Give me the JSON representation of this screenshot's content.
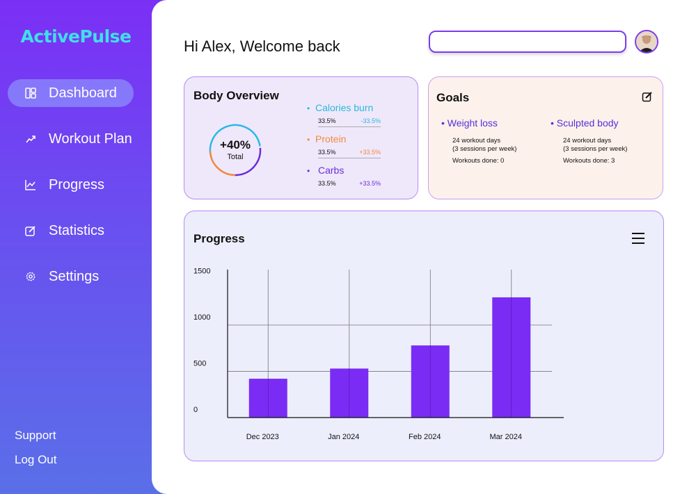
{
  "app": {
    "brand": "ActivePulse"
  },
  "sidebar": {
    "items": [
      {
        "label": "Dashboard",
        "icon": "dashboard-icon",
        "active": true
      },
      {
        "label": "Workout Plan",
        "icon": "trend-arrow-icon",
        "active": false
      },
      {
        "label": "Progress",
        "icon": "line-chart-icon",
        "active": false
      },
      {
        "label": "Statistics",
        "icon": "edit-square-icon",
        "active": false
      },
      {
        "label": "Settings",
        "icon": "gear-icon",
        "active": false
      }
    ],
    "support": "Support",
    "logout": "Log Out"
  },
  "header": {
    "greeting": "Hi Alex, Welcome back",
    "search_value": ""
  },
  "body_overview": {
    "title": "Body Overview",
    "ring_value": "+40%",
    "ring_label": "Total",
    "metrics": [
      {
        "label": "Calories burn",
        "value": "33.5%",
        "change": "-33.5%",
        "color": "#2bb8d8"
      },
      {
        "label": "Protein",
        "value": "33.5%",
        "change": "+33.5%",
        "color": "#f08a3a"
      },
      {
        "label": "Carbs",
        "value": "33.5%",
        "change": "+33.5%",
        "color": "#6a2ed8"
      }
    ]
  },
  "goals": {
    "title": "Goals",
    "items": [
      {
        "name": "Weight loss",
        "line1": "24 workout days",
        "line2": "(3 sessions per week)",
        "done": "Workouts done: 0"
      },
      {
        "name": "Sculpted body",
        "line1": "24 workout days",
        "line2": "(3 sessions per week)",
        "done": "Workouts done: 3"
      }
    ]
  },
  "progress": {
    "title": "Progress"
  },
  "chart_data": {
    "type": "bar",
    "categories": [
      "Dec 2023",
      "Jan 2024",
      "Feb 2024",
      "Mar 2024"
    ],
    "values": [
      420,
      530,
      780,
      1300
    ],
    "ylim": [
      0,
      1600
    ],
    "yticks": [
      0,
      500,
      1000,
      1500
    ],
    "bar_color": "#7a2cf5",
    "grid": true
  },
  "colors": {
    "accent": "#7a2cf5",
    "brand": "#3fe0e8"
  }
}
